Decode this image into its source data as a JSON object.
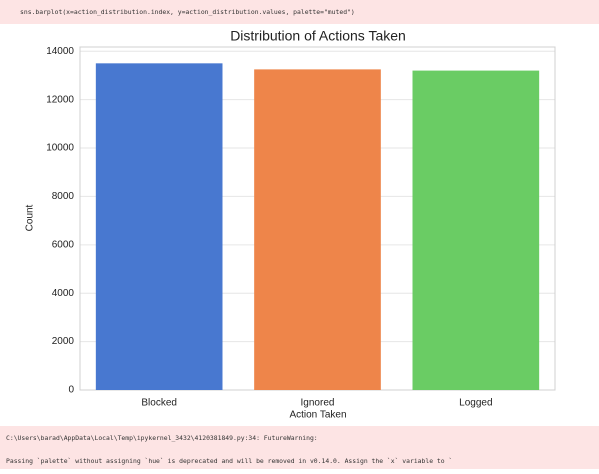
{
  "code": "sns.barplot(x=action_distribution.index, y=action_distribution.values, palette=\"muted\")",
  "chart_data": {
    "type": "bar",
    "title": "Distribution of Actions Taken",
    "x_label": "Action Taken",
    "y_label": "Count",
    "categories": [
      "Blocked",
      "Ignored",
      "Logged"
    ],
    "values": [
      13500,
      13250,
      13200
    ],
    "colors": [
      "#4878d0",
      "#ee854a",
      "#6acc64"
    ],
    "ylim": [
      0,
      14175
    ],
    "yticks": [
      0,
      2000,
      4000,
      6000,
      8000,
      10000,
      12000,
      14000
    ],
    "grid": true
  },
  "warning": [
    "C:\\Users\\barad\\AppData\\Local\\Temp\\ipykernel_3432\\4120381849.py:34: FutureWarning:",
    "Passing `palette` without assigning `hue` is deprecated and will be removed in v0.14.0. Assign the `x` variable to `"
  ]
}
